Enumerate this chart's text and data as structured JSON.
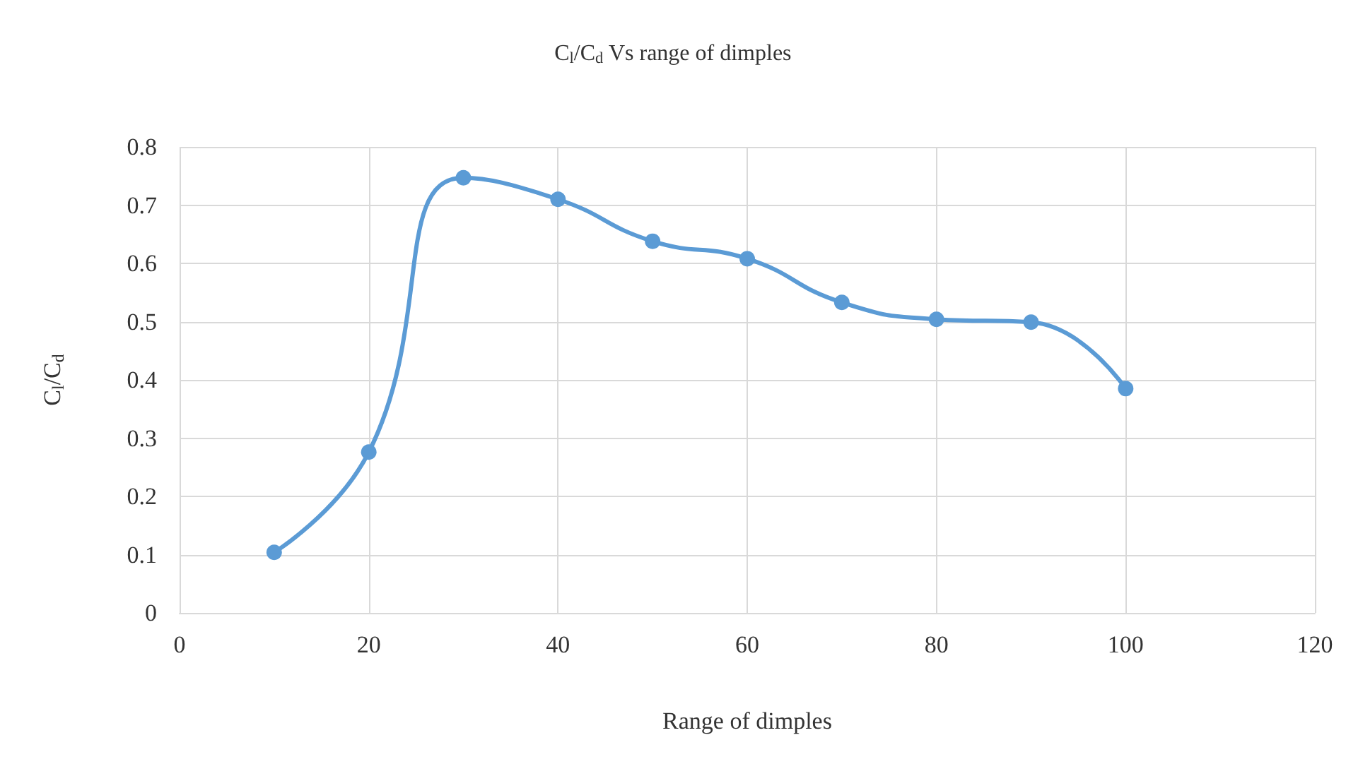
{
  "chart_data": {
    "type": "line",
    "title": "C$_{l}$/C$_{d}$ Vs range of dimples",
    "xlabel": "Range of dimples",
    "ylabel": "C$_{l}$/C$_{d}$",
    "x": [
      10,
      20,
      30,
      40,
      50,
      60,
      70,
      80,
      90,
      100
    ],
    "series": [
      {
        "color": "#5b9bd5",
        "values": [
          0.104,
          0.276,
          0.747,
          0.71,
          0.638,
          0.608,
          0.533,
          0.504,
          0.499,
          0.385
        ]
      }
    ],
    "xlim": [
      0,
      120
    ],
    "xticks": [
      0,
      20,
      40,
      60,
      80,
      100,
      120
    ],
    "ylim": [
      0,
      0.8
    ],
    "yticks": [
      0,
      0.1,
      0.2,
      0.3,
      0.4,
      0.5,
      0.6,
      0.7,
      0.8
    ],
    "grid": true,
    "marker": "circle",
    "line_style": "solid"
  }
}
